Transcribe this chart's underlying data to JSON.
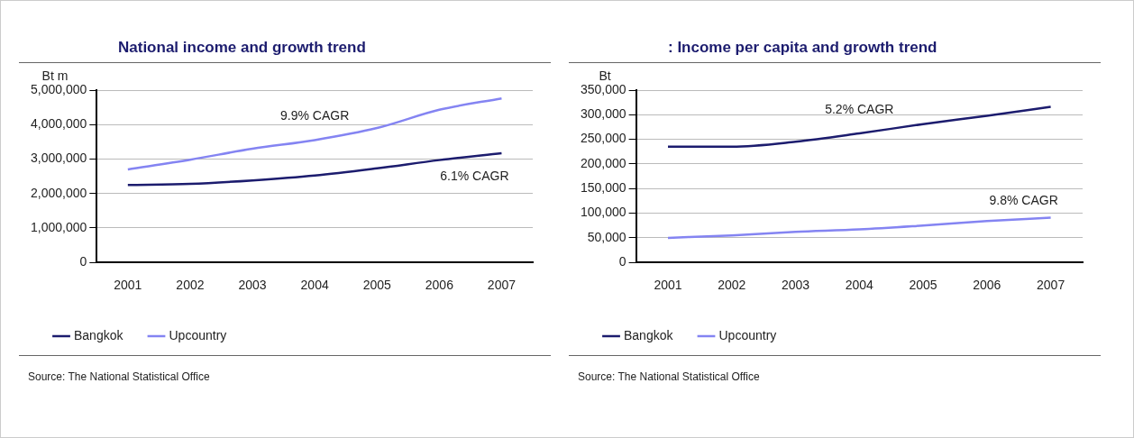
{
  "chart_data": [
    {
      "type": "line",
      "title": "National income and growth trend",
      "ylabel": "Bt m",
      "categories": [
        "2001",
        "2002",
        "2003",
        "2004",
        "2005",
        "2006",
        "2007"
      ],
      "series": [
        {
          "name": "Bangkok",
          "color": "#1c1c6e",
          "values": [
            2250000,
            2280000,
            2380000,
            2520000,
            2730000,
            2970000,
            3170000
          ]
        },
        {
          "name": "Upcountry",
          "color": "#8484f2",
          "values": [
            2700000,
            2980000,
            3300000,
            3550000,
            3900000,
            4430000,
            4760000
          ]
        }
      ],
      "ylim": [
        0,
        5000000
      ],
      "yticks": [
        {
          "value": 0,
          "label": "0"
        },
        {
          "value": 1000000,
          "label": "1,000,000"
        },
        {
          "value": 2000000,
          "label": "2,000,000"
        },
        {
          "value": 3000000,
          "label": "3,000,000"
        },
        {
          "value": 4000000,
          "label": "4,000,000"
        },
        {
          "value": 5000000,
          "label": "5,000,000"
        }
      ],
      "grid": "y",
      "legend": "bottom",
      "marker": "none",
      "line_style": "solid",
      "annotations": [
        "6.1% CAGR",
        "9.9% CAGR",
        "Source: The National Statistical Office"
      ]
    },
    {
      "type": "line",
      "title": ": Income per capita and growth trend",
      "ylabel": "Bt",
      "categories": [
        "2001",
        "2002",
        "2003",
        "2004",
        "2005",
        "2006",
        "2007"
      ],
      "series": [
        {
          "name": "Bangkok",
          "color": "#1c1c6e",
          "values": [
            235000,
            235000,
            245000,
            262000,
            281000,
            298000,
            316000
          ]
        },
        {
          "name": "Upcountry",
          "color": "#8484f2",
          "values": [
            50000,
            55000,
            62000,
            67000,
            75000,
            84000,
            91000
          ]
        }
      ],
      "ylim": [
        0,
        350000
      ],
      "yticks": [
        {
          "value": 0,
          "label": "0"
        },
        {
          "value": 50000,
          "label": "50,000"
        },
        {
          "value": 100000,
          "label": "100,000"
        },
        {
          "value": 150000,
          "label": "150,000"
        },
        {
          "value": 200000,
          "label": "200,000"
        },
        {
          "value": 250000,
          "label": "250,000"
        },
        {
          "value": 300000,
          "label": "300,000"
        },
        {
          "value": 350000,
          "label": "350,000"
        }
      ],
      "grid": "y",
      "legend": "bottom",
      "marker": "none",
      "line_style": "solid",
      "annotations": [
        "5.2% CAGR",
        "9.8% CAGR",
        "Source: The National Statistical Office"
      ]
    }
  ]
}
